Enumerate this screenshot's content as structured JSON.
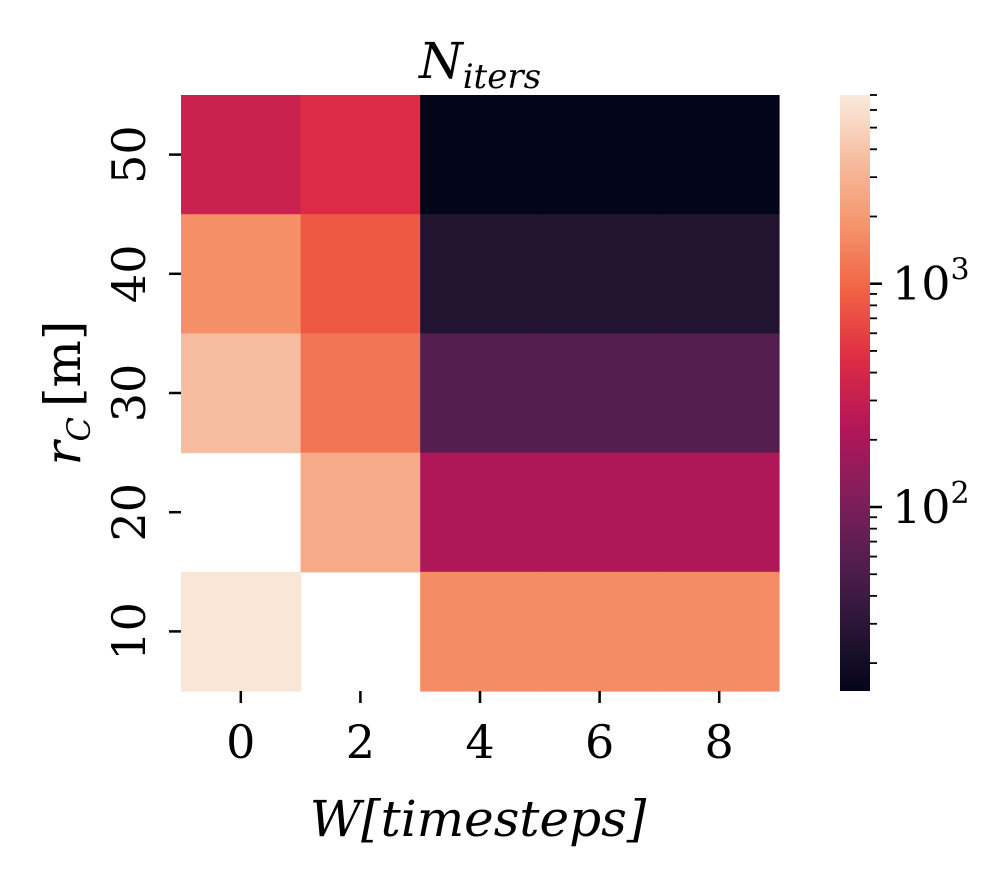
{
  "chart_data": {
    "type": "heatmap",
    "title_base": "N",
    "title_sub": "iters",
    "xlabel": "W[timesteps]",
    "ylabel_main": "r",
    "ylabel_sub": "C",
    "ylabel_unit": "[m]",
    "x_categories": [
      "0",
      "2",
      "4",
      "6",
      "8"
    ],
    "y_categories": [
      "50",
      "40",
      "30",
      "20",
      "10"
    ],
    "values": [
      [
        330,
        450,
        15,
        15,
        15
      ],
      [
        1700,
        820,
        26,
        26,
        26
      ],
      [
        3600,
        1200,
        58,
        58,
        58
      ],
      [
        null,
        2600,
        210,
        210,
        210
      ],
      [
        6500,
        null,
        1650,
        1650,
        1650
      ]
    ],
    "colorbar": {
      "scale": "log",
      "min": 15,
      "max": 7000,
      "ticks": [
        {
          "value": 100,
          "base": "10",
          "exp": "2"
        },
        {
          "value": 1000,
          "base": "10",
          "exp": "3"
        }
      ]
    },
    "colormap": [
      "#03051a",
      "#2a1636",
      "#551e4f",
      "#841e5a",
      "#b41658",
      "#dd2c45",
      "#f06043",
      "#f5936a",
      "#f6bc9f",
      "#faebdd"
    ]
  }
}
